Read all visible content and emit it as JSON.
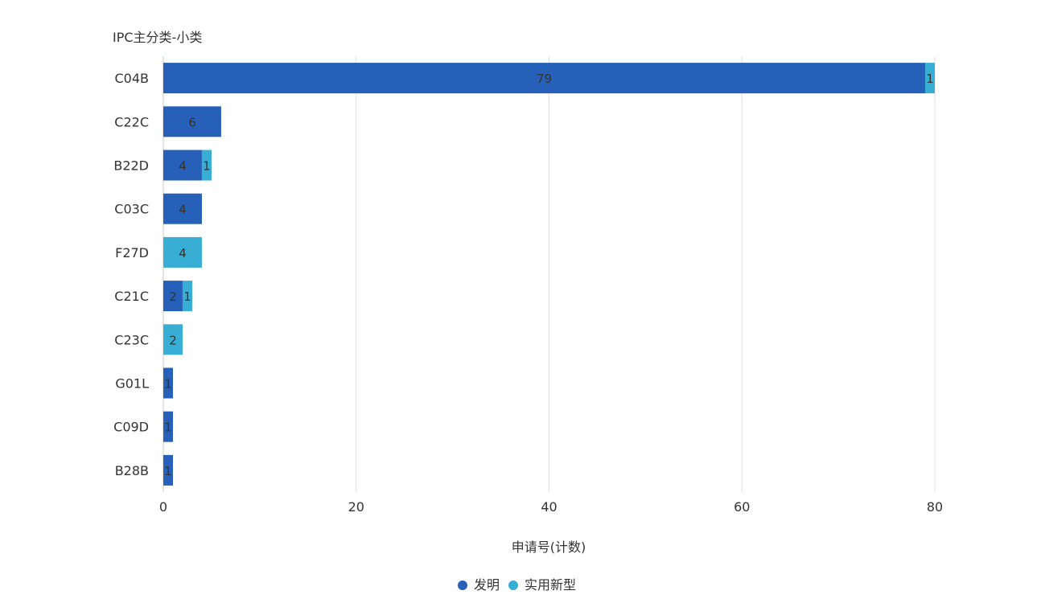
{
  "chart_data": {
    "type": "bar",
    "orientation": "horizontal",
    "stacked": true,
    "ylabel": "IPC主分类-小类",
    "xlabel": "申请号(计数)",
    "categories": [
      "C04B",
      "C22C",
      "B22D",
      "C03C",
      "F27D",
      "C21C",
      "C23C",
      "G01L",
      "C09D",
      "B28B"
    ],
    "series": [
      {
        "name": "发明",
        "color": "#2660B8",
        "values": [
          79,
          6,
          4,
          4,
          0,
          2,
          0,
          1,
          1,
          1
        ]
      },
      {
        "name": "实用新型",
        "color": "#38AED4",
        "values": [
          1,
          0,
          1,
          0,
          4,
          1,
          2,
          0,
          0,
          0
        ]
      }
    ],
    "xlim": [
      0,
      80
    ],
    "xticks": [
      0,
      20,
      40,
      60,
      80
    ],
    "grid": true,
    "legend_position": "bottom-center"
  }
}
